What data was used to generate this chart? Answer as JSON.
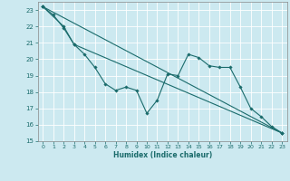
{
  "title": "",
  "xlabel": "Humidex (Indice chaleur)",
  "background_color": "#cce9f0",
  "grid_color": "#ffffff",
  "line_color": "#1a6b6b",
  "xlim": [
    -0.5,
    23.5
  ],
  "ylim": [
    15,
    23.5
  ],
  "yticks": [
    15,
    16,
    17,
    18,
    19,
    20,
    21,
    22,
    23
  ],
  "xticks": [
    0,
    1,
    2,
    3,
    4,
    5,
    6,
    7,
    8,
    9,
    10,
    11,
    12,
    13,
    14,
    15,
    16,
    17,
    18,
    19,
    20,
    21,
    22,
    23
  ],
  "series": [
    [
      0,
      23.2
    ],
    [
      1,
      22.7
    ],
    [
      2,
      21.9
    ],
    [
      3,
      20.9
    ],
    [
      4,
      20.3
    ],
    [
      5,
      19.5
    ],
    [
      6,
      18.5
    ],
    [
      7,
      18.1
    ],
    [
      8,
      18.3
    ],
    [
      9,
      18.1
    ],
    [
      10,
      16.7
    ],
    [
      11,
      17.5
    ],
    [
      12,
      19.1
    ],
    [
      13,
      19.0
    ],
    [
      14,
      20.3
    ],
    [
      15,
      20.1
    ],
    [
      16,
      19.6
    ],
    [
      17,
      19.5
    ],
    [
      18,
      19.5
    ],
    [
      19,
      18.3
    ],
    [
      20,
      17.0
    ],
    [
      21,
      16.5
    ],
    [
      22,
      15.9
    ],
    [
      23,
      15.5
    ]
  ],
  "line2": [
    [
      0,
      23.2
    ],
    [
      2,
      22.0
    ],
    [
      3,
      20.9
    ],
    [
      23,
      15.5
    ]
  ],
  "line3": [
    [
      0,
      23.2
    ],
    [
      23,
      15.5
    ]
  ]
}
